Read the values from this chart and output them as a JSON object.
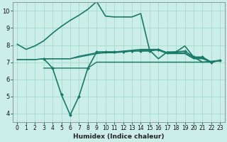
{
  "background_color": "#cceee8",
  "grid_color": "#aaddcc",
  "line_color": "#1a7a6a",
  "xlabel": "Humidex (Indice chaleur)",
  "xlim": [
    -0.5,
    23.5
  ],
  "ylim": [
    3.5,
    10.5
  ],
  "yticks": [
    4,
    5,
    6,
    7,
    8,
    9,
    10
  ],
  "xticks": [
    0,
    1,
    2,
    3,
    4,
    5,
    6,
    7,
    8,
    9,
    10,
    11,
    12,
    13,
    14,
    15,
    16,
    17,
    18,
    19,
    20,
    21,
    22,
    23
  ],
  "series": [
    {
      "x": [
        0,
        1,
        2,
        3,
        4,
        5,
        6,
        7,
        8,
        9,
        10,
        11,
        12,
        13,
        14,
        15,
        16,
        17,
        18,
        19,
        20,
        21,
        22,
        23
      ],
      "y": [
        8.05,
        7.75,
        7.95,
        8.25,
        8.7,
        9.1,
        9.45,
        9.75,
        10.1,
        10.55,
        9.7,
        9.65,
        9.65,
        9.65,
        9.85,
        7.7,
        7.2,
        7.6,
        7.6,
        7.95,
        7.3,
        7.0,
        7.05,
        7.1
      ],
      "marker": false,
      "linewidth": 1.2,
      "dashed": false
    },
    {
      "x": [
        0,
        1,
        2,
        3,
        4,
        5,
        6,
        7,
        8,
        9,
        10,
        11,
        12,
        13,
        14,
        15,
        16,
        17,
        18,
        19,
        20,
        21,
        22,
        23
      ],
      "y": [
        7.15,
        7.15,
        7.15,
        7.2,
        7.2,
        7.2,
        7.2,
        7.3,
        7.4,
        7.5,
        7.55,
        7.55,
        7.6,
        7.65,
        7.7,
        7.7,
        7.7,
        7.5,
        7.5,
        7.5,
        7.2,
        7.2,
        7.0,
        7.1
      ],
      "marker": false,
      "linewidth": 1.0,
      "dashed": false
    },
    {
      "x": [
        0,
        1,
        2,
        3,
        4,
        5,
        6,
        7,
        8,
        9,
        10,
        11,
        12,
        13,
        14,
        15,
        16,
        17,
        18,
        19,
        20,
        21,
        22,
        23
      ],
      "y": [
        7.15,
        7.15,
        7.15,
        7.2,
        7.2,
        7.2,
        7.2,
        7.35,
        7.45,
        7.55,
        7.6,
        7.6,
        7.65,
        7.7,
        7.75,
        7.75,
        7.75,
        7.55,
        7.55,
        7.55,
        7.25,
        7.25,
        7.0,
        7.1
      ],
      "marker": false,
      "linewidth": 1.0,
      "dashed": false
    },
    {
      "x": [
        3,
        4,
        5,
        6,
        7,
        8,
        9,
        10,
        11,
        12,
        13,
        14,
        15,
        16,
        17,
        18,
        19,
        20,
        21,
        22,
        23
      ],
      "y": [
        7.2,
        6.65,
        5.1,
        3.9,
        5.0,
        6.65,
        7.6,
        7.6,
        7.6,
        7.6,
        7.65,
        7.65,
        7.65,
        7.75,
        7.55,
        7.6,
        7.65,
        7.3,
        7.3,
        7.0,
        7.1
      ],
      "marker": true,
      "linewidth": 1.2,
      "dashed": false
    },
    {
      "x": [
        3,
        4,
        5,
        6,
        7,
        8,
        9,
        10,
        11,
        12,
        13,
        14,
        15,
        16,
        17,
        18,
        19,
        20,
        21,
        22,
        23
      ],
      "y": [
        6.65,
        6.65,
        6.65,
        6.65,
        6.65,
        6.65,
        7.0,
        7.0,
        7.0,
        7.0,
        7.0,
        7.0,
        7.0,
        7.0,
        7.0,
        7.0,
        7.0,
        7.0,
        7.0,
        7.0,
        7.1
      ],
      "marker": false,
      "linewidth": 1.0,
      "dashed": false
    }
  ]
}
